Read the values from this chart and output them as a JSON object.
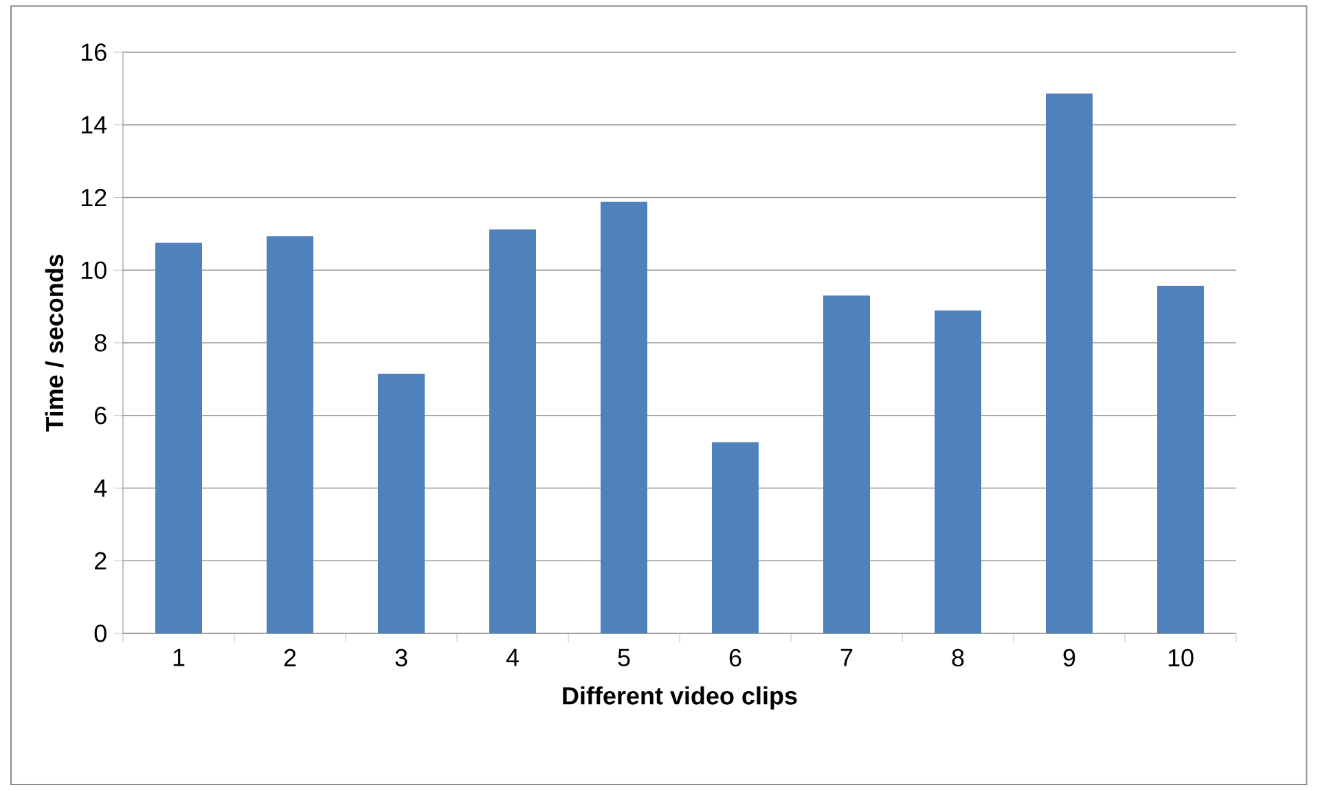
{
  "chart_data": {
    "type": "bar",
    "xlabel": "Different video clips",
    "ylabel": "Time / seconds",
    "categories": [
      "1",
      "2",
      "3",
      "4",
      "5",
      "6",
      "7",
      "8",
      "9",
      "10"
    ],
    "values": [
      10.75,
      10.93,
      7.15,
      11.12,
      11.88,
      5.26,
      9.3,
      8.89,
      14.86,
      9.57
    ],
    "color": "#4f81bd",
    "ylim": [
      0,
      16
    ],
    "yticks": [
      0,
      2,
      4,
      6,
      8,
      10,
      12,
      14,
      16
    ],
    "grid": "y"
  }
}
